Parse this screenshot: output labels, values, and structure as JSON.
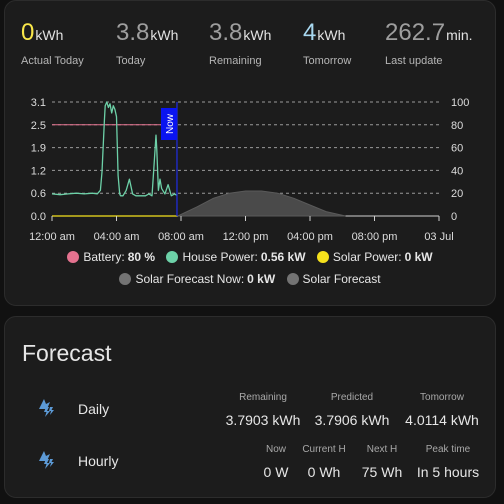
{
  "stats": [
    {
      "value": "0",
      "unit": "kWh",
      "label": "Actual Today",
      "color": "#f9e74a"
    },
    {
      "value": "3.8",
      "unit": "kWh",
      "label": "Today",
      "color": "#9e9e9e"
    },
    {
      "value": "3.8",
      "unit": "kWh",
      "label": "Remaining",
      "color": "#9e9e9e"
    },
    {
      "value": "4",
      "unit": "kWh",
      "label": "Tomorrow",
      "color": "#a8d8f0"
    },
    {
      "value": "262.7",
      "unit": "min.",
      "label": "Last update",
      "color": "#9e9e9e"
    }
  ],
  "chart_data": {
    "type": "line",
    "now_label": "Now",
    "y_left_ticks": [
      "0.0",
      "0.6",
      "1.2",
      "1.9",
      "2.5",
      "3.1"
    ],
    "y_right_ticks": [
      "0",
      "20",
      "40",
      "60",
      "80",
      "100"
    ],
    "x_ticks": [
      "12:00 am",
      "04:00 am",
      "08:00 am",
      "12:00 pm",
      "04:00 pm",
      "08:00 pm",
      "03 Jul"
    ],
    "x_range_hours": [
      0,
      24
    ],
    "y_left_range": [
      0,
      3.1
    ],
    "y_right_range": [
      0,
      100
    ],
    "now_hour": 7.75,
    "series": [
      {
        "name": "Battery",
        "color": "#e4728f",
        "axis": "right",
        "x": [
          0,
          7.75
        ],
        "y": [
          80,
          80
        ]
      },
      {
        "name": "House Power",
        "color": "#6dd1a8",
        "axis": "left",
        "x": [
          0,
          0.5,
          1,
          1.5,
          2,
          2.5,
          2.8,
          3,
          3.1,
          3.25,
          3.3,
          3.4,
          3.5,
          3.6,
          3.7,
          3.8,
          3.9,
          4,
          4.1,
          4.2,
          4.25,
          4.4,
          4.6,
          4.8,
          5,
          5.2,
          5.5,
          5.8,
          6,
          6.2,
          6.3,
          6.45,
          6.5,
          6.6,
          6.7,
          6.8,
          7,
          7.2,
          7.4,
          7.6,
          7.75
        ],
        "y": [
          0.6,
          0.58,
          0.6,
          0.62,
          0.6,
          0.62,
          0.6,
          0.7,
          1.2,
          2.6,
          3.0,
          3.1,
          2.95,
          3.05,
          2.8,
          3.0,
          2.9,
          2.7,
          1.1,
          0.6,
          0.55,
          0.55,
          0.7,
          1.0,
          0.6,
          0.55,
          0.55,
          0.55,
          0.6,
          0.55,
          1.2,
          2.2,
          1.8,
          0.7,
          1.0,
          0.75,
          0.6,
          0.85,
          0.55,
          0.6,
          0.56
        ]
      },
      {
        "name": "Solar Power",
        "color": "#f5e11c",
        "axis": "left",
        "x": [
          0,
          7.75
        ],
        "y": [
          0,
          0
        ]
      },
      {
        "name": "Solar Forecast",
        "color": "#4a4a4a",
        "axis": "left",
        "x": [
          7.8,
          9,
          10,
          11,
          12,
          13,
          14,
          15,
          16,
          17,
          18.2
        ],
        "y": [
          0,
          0.25,
          0.48,
          0.62,
          0.68,
          0.68,
          0.62,
          0.48,
          0.3,
          0.12,
          0
        ]
      }
    ],
    "legend": [
      {
        "name": "Battery",
        "value": "80 %",
        "color": "#e4728f"
      },
      {
        "name": "House Power",
        "value": "0.56 kW",
        "color": "#6dd1a8"
      },
      {
        "name": "Solar Power",
        "value": "0 kW",
        "color": "#f5e11c"
      },
      {
        "name": "Solar Forecast Now",
        "value": "0 kW",
        "color": "#737373"
      },
      {
        "name": "Solar Forecast",
        "value": "",
        "color": "#737373"
      }
    ]
  },
  "forecast": {
    "title": "Forecast",
    "daily": {
      "label": "Daily",
      "cols": [
        {
          "header": "Remaining",
          "value": "3.7903 kWh"
        },
        {
          "header": "Predicted",
          "value": "3.7906 kWh"
        },
        {
          "header": "Tomorrow",
          "value": "4.0114 kWh"
        }
      ]
    },
    "hourly": {
      "label": "Hourly",
      "cols": [
        {
          "header": "Now",
          "value": "0 W"
        },
        {
          "header": "Current H",
          "value": "0 Wh"
        },
        {
          "header": "Next H",
          "value": "75 Wh"
        },
        {
          "header": "Peak time",
          "value": "In 5 hours"
        }
      ]
    }
  }
}
